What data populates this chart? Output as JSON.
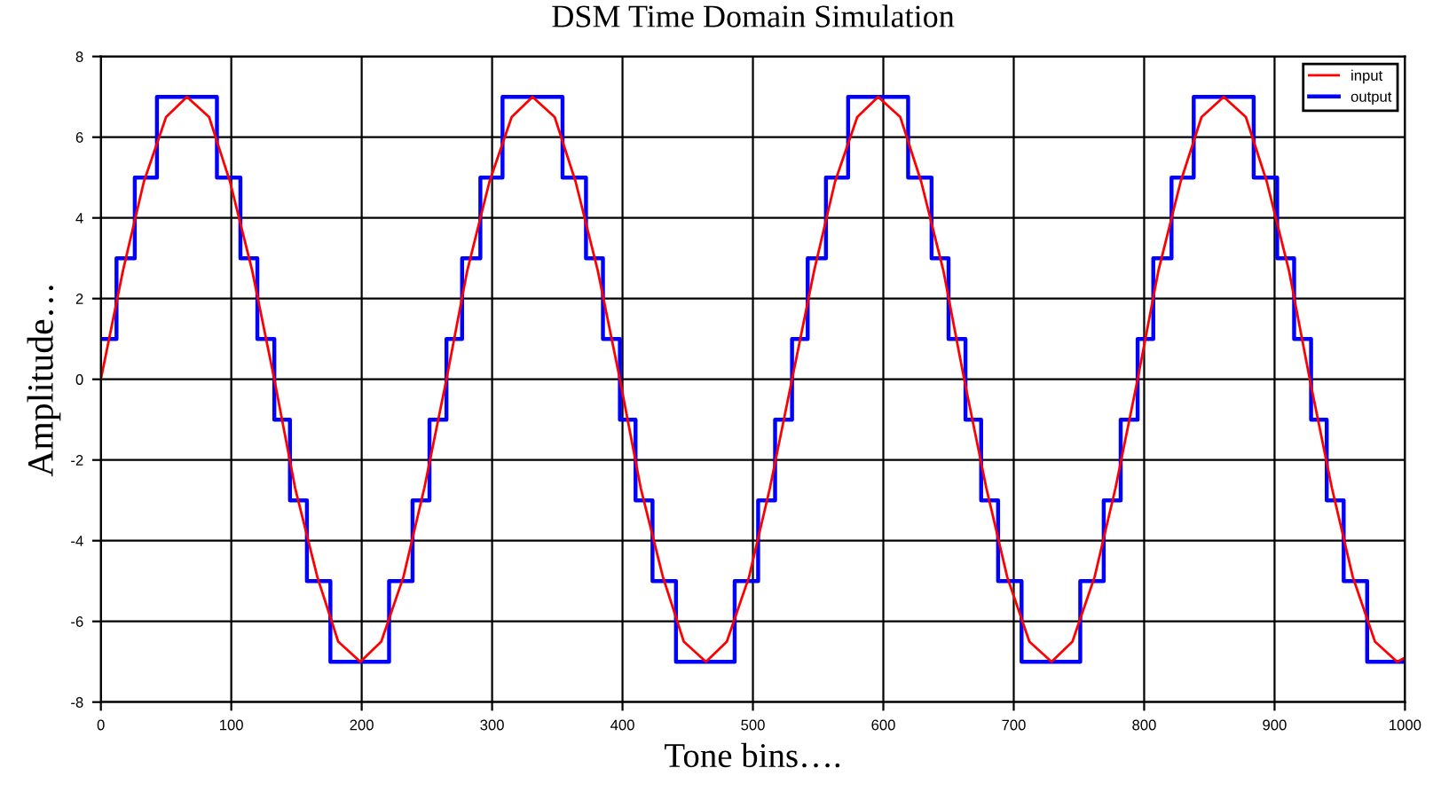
{
  "chart_data": {
    "type": "line",
    "title": "DSM Time Domain Simulation",
    "xlabel": "Tone bins….",
    "ylabel": "Amplitude…",
    "xlim": [
      0,
      1000
    ],
    "ylim": [
      -8,
      8
    ],
    "xticks": [
      0,
      100,
      200,
      300,
      400,
      500,
      600,
      700,
      800,
      900,
      1000
    ],
    "yticks": [
      -8,
      -6,
      -4,
      -2,
      0,
      2,
      4,
      6,
      8
    ],
    "grid": true,
    "legend": "top right",
    "series": [
      {
        "name": "output",
        "type": "step",
        "color": "#0000ff",
        "x": [
          0,
          12,
          26,
          43,
          89,
          107,
          120,
          133,
          145,
          158,
          176,
          221,
          239,
          252,
          265,
          277,
          291,
          308,
          354,
          372,
          385,
          398,
          410,
          423,
          441,
          486,
          504,
          517,
          530,
          542,
          556,
          573,
          619,
          637,
          650,
          663,
          675,
          688,
          706,
          751,
          769,
          782,
          795,
          807,
          821,
          838,
          884,
          902,
          915,
          928,
          940,
          953,
          971,
          1000
        ],
        "values": [
          1,
          3,
          5,
          7,
          5,
          3,
          1,
          -1,
          -3,
          -5,
          -7,
          -5,
          -3,
          -1,
          1,
          3,
          5,
          7,
          5,
          3,
          1,
          -1,
          -3,
          -5,
          -7,
          -5,
          -3,
          -1,
          1,
          3,
          5,
          7,
          5,
          3,
          1,
          -1,
          -3,
          -5,
          -7,
          -5,
          -3,
          -1,
          1,
          3,
          5,
          7,
          5,
          3,
          1,
          -1,
          -3,
          -5,
          -7,
          -7
        ]
      },
      {
        "name": "input",
        "color": "#ff0000",
        "x": [
          0,
          17,
          33,
          50,
          66,
          83,
          99,
          116,
          133,
          149,
          166,
          182,
          199,
          215,
          232,
          248,
          265,
          281,
          298,
          315,
          331,
          348,
          364,
          381,
          398,
          414,
          431,
          447,
          464,
          480,
          497,
          513,
          530,
          547,
          563,
          580,
          596,
          613,
          629,
          646,
          662,
          679,
          695,
          712,
          729,
          745,
          762,
          778,
          795,
          811,
          828,
          844,
          861,
          878,
          894,
          911,
          927,
          944,
          960,
          977,
          994,
          1000
        ],
        "values": [
          0,
          2.7,
          4.9,
          6.5,
          7,
          6.5,
          4.9,
          2.7,
          0,
          -2.7,
          -4.9,
          -6.5,
          -7,
          -6.5,
          -4.9,
          -2.7,
          0,
          2.7,
          4.9,
          6.5,
          7,
          6.5,
          4.9,
          2.7,
          0,
          -2.7,
          -4.9,
          -6.5,
          -7,
          -6.5,
          -4.9,
          -2.7,
          0,
          2.7,
          4.9,
          6.5,
          7,
          6.5,
          4.9,
          2.7,
          0,
          -2.7,
          -4.9,
          -6.5,
          -7,
          -6.5,
          -4.9,
          -2.7,
          0,
          2.7,
          4.9,
          6.5,
          7,
          6.5,
          4.9,
          2.7,
          0,
          -2.7,
          -4.9,
          -6.5,
          -7,
          -6.9
        ]
      }
    ]
  }
}
